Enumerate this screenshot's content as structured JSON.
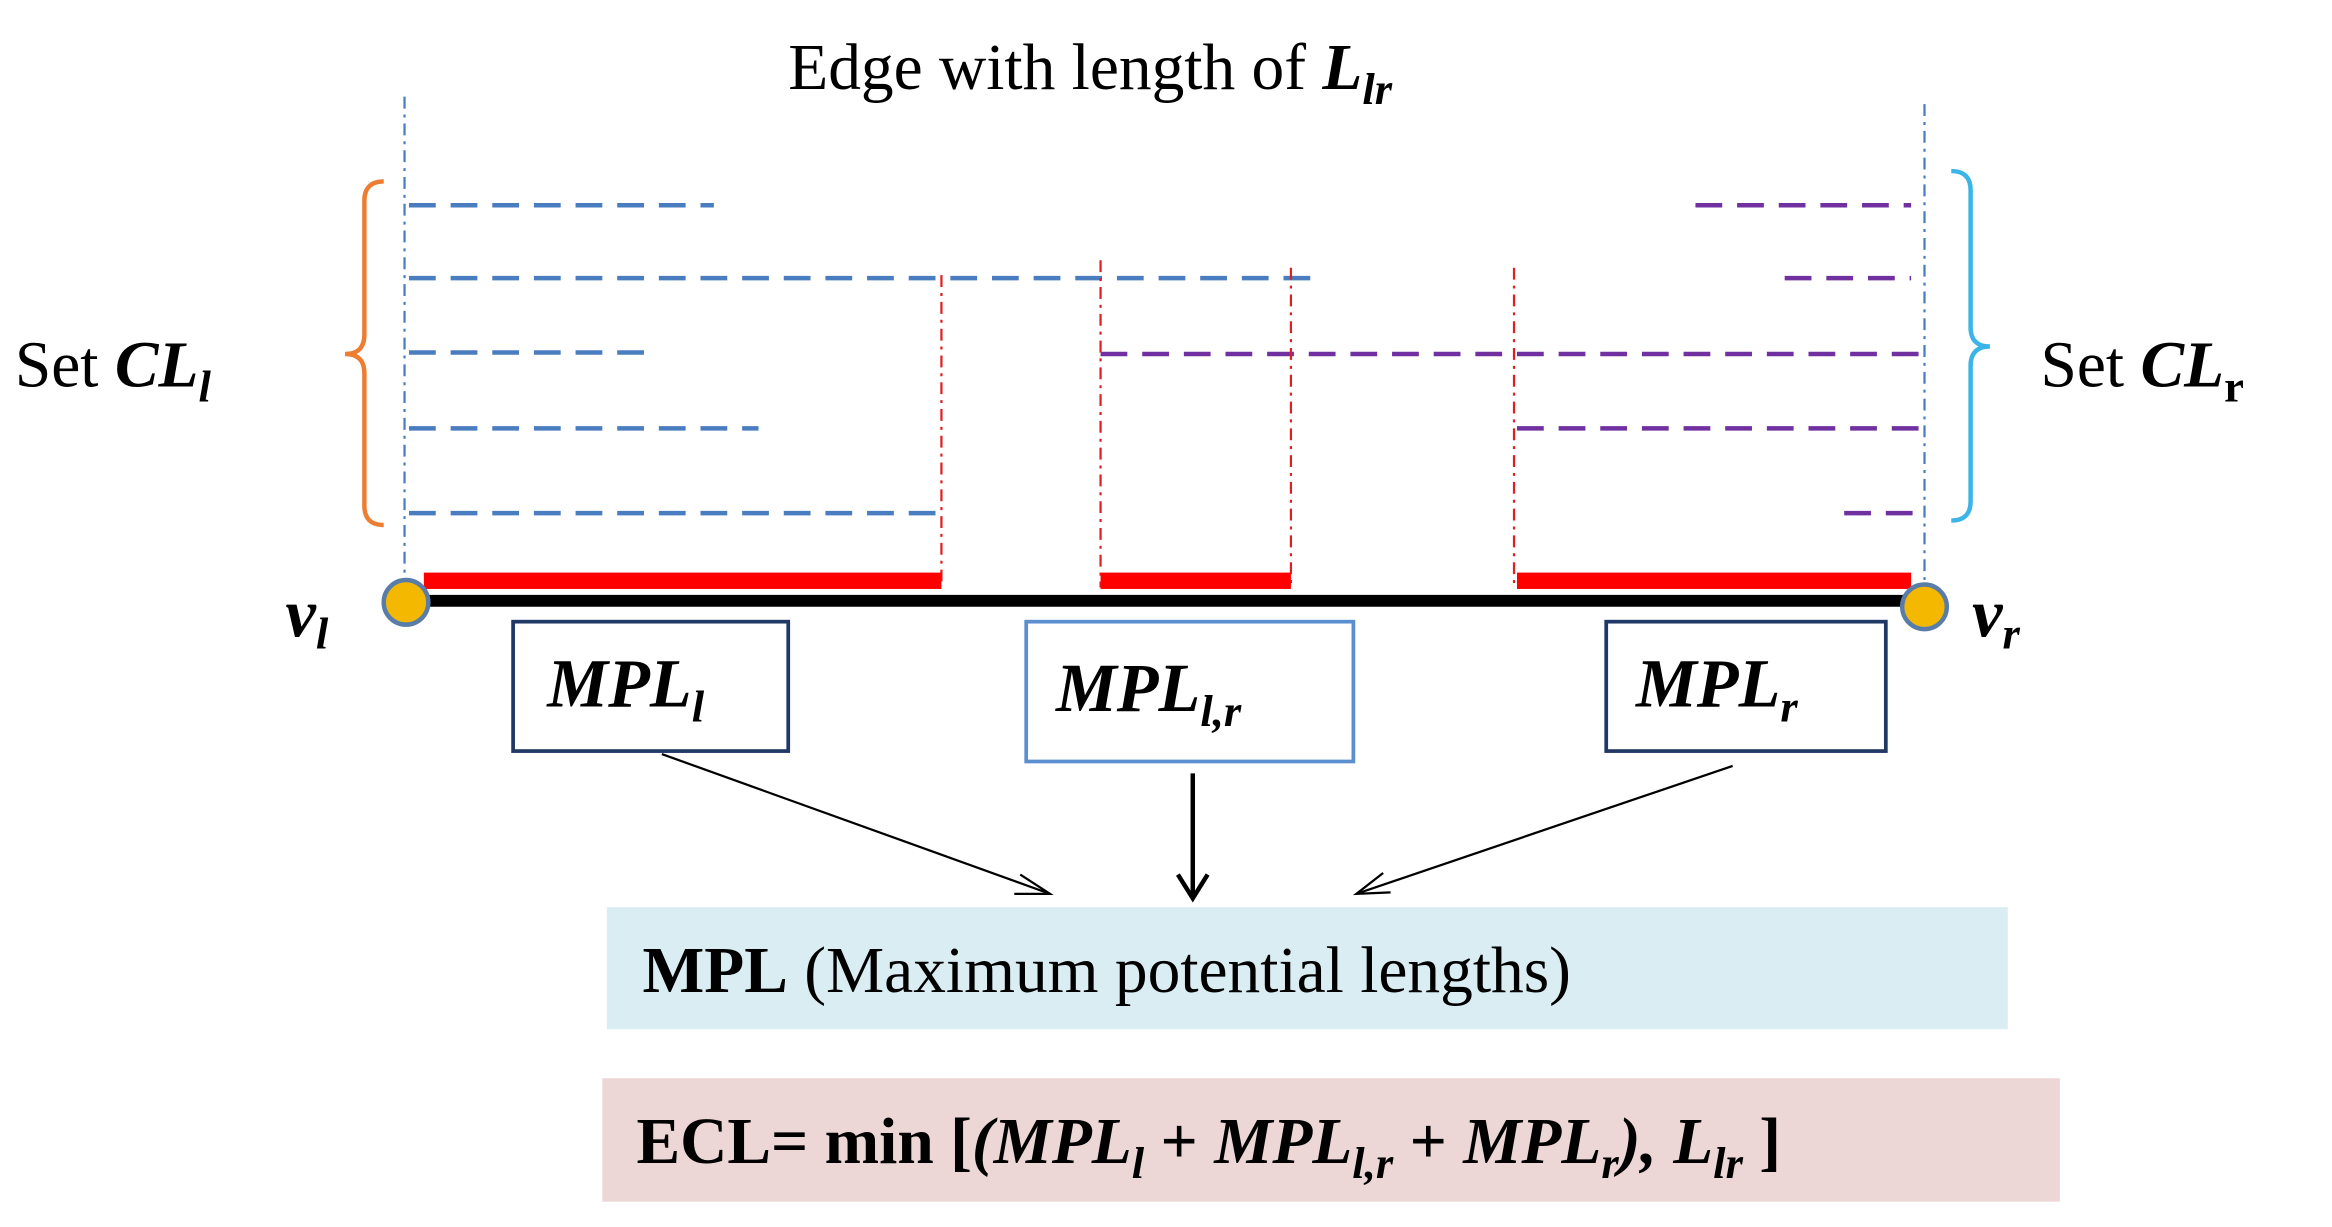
{
  "title": {
    "text": "Edge with length of ",
    "var": "L",
    "sub": "lr"
  },
  "left_set": {
    "text": "Set ",
    "var": "CL",
    "sub": "l"
  },
  "right_set": {
    "text": "Set ",
    "var": "CL",
    "sub": "r"
  },
  "nodes": [
    {
      "var": "v",
      "sub": "l"
    },
    {
      "var": "v",
      "sub": "r"
    }
  ],
  "boxes": [
    {
      "var": "MPL",
      "sub": "l"
    },
    {
      "var": "MPL",
      "sub": "l,r"
    },
    {
      "var": "MPL",
      "sub": "r"
    }
  ],
  "mpl_box": {
    "bold": "MPL",
    "text": " (Maximum potential lengths)"
  },
  "ecl_box": {
    "parts": [
      "ECL= min [",
      "(MPL",
      "l",
      " + ",
      "MPL",
      "l,r",
      " + ",
      "MPL",
      "r",
      "), ",
      "L",
      "lr",
      " ]"
    ]
  }
}
